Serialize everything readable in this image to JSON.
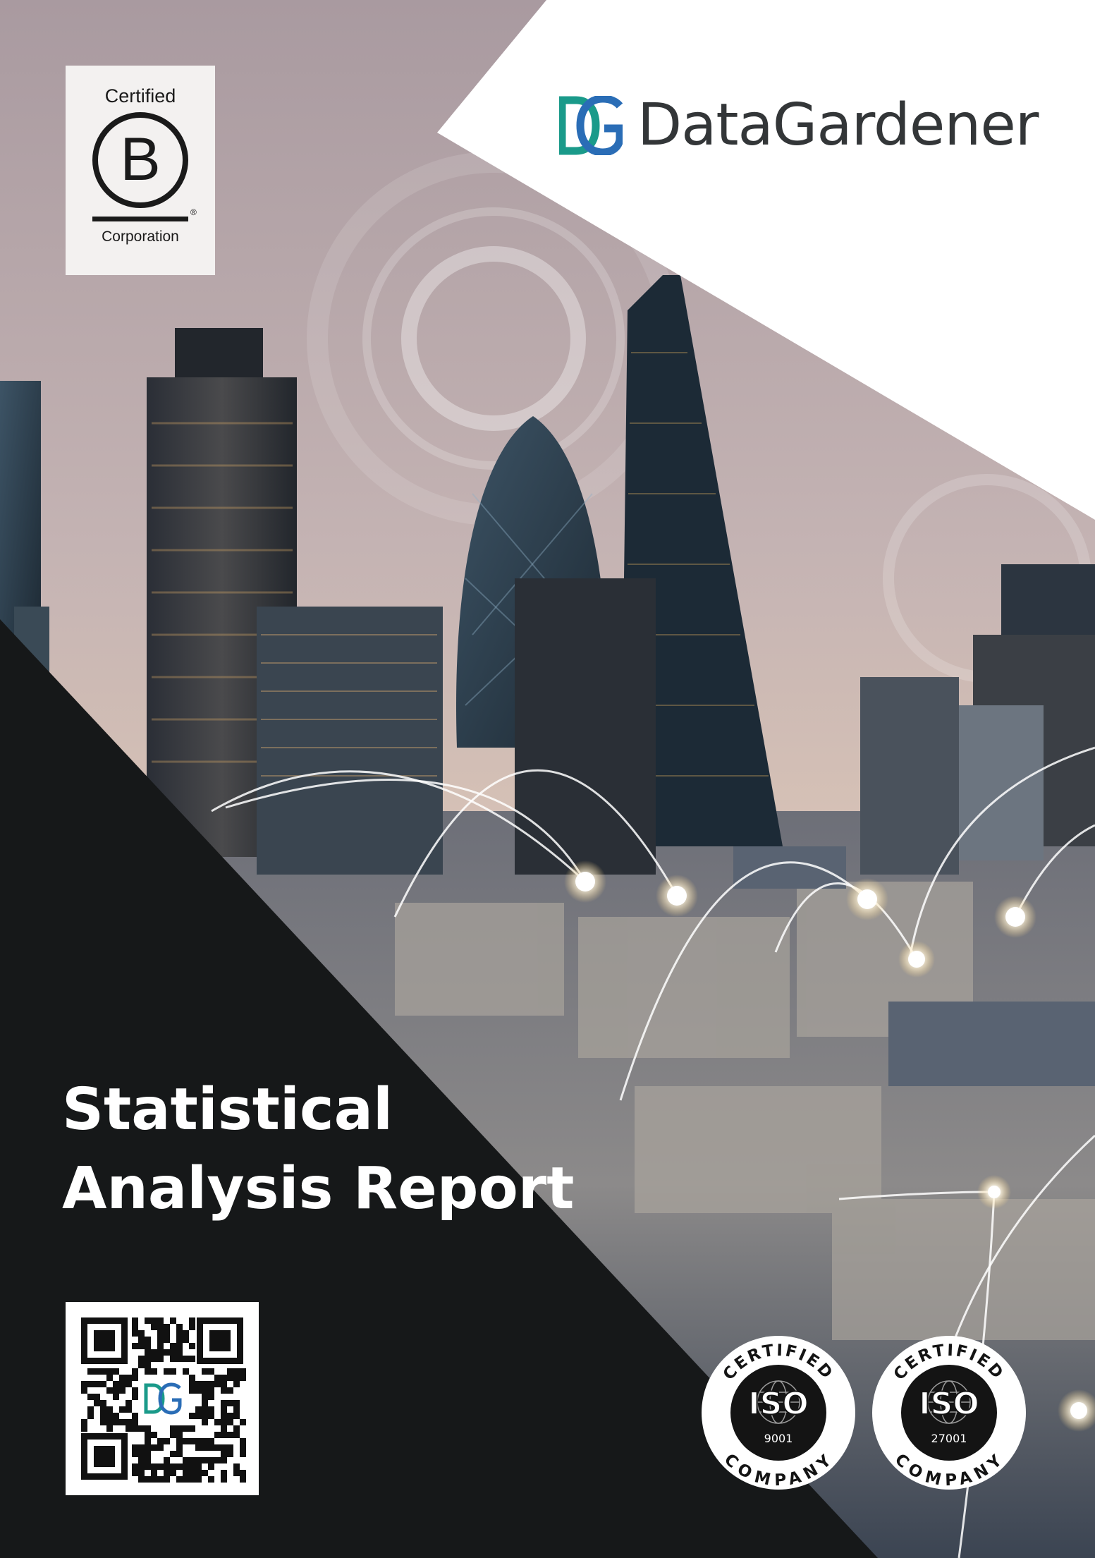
{
  "brand": {
    "mark": "DG",
    "name": "DataGardener",
    "colors": {
      "mark_teal": "#1a9a8a",
      "mark_blue": "#2a6db6",
      "name_text": "#333638"
    }
  },
  "certification_badge": {
    "top_text": "Certified",
    "letter": "B",
    "bottom_text": "Corporation"
  },
  "cover": {
    "title_line1": "Statistical",
    "title_line2": "Analysis Report",
    "background": "London skyline with network connection arcs",
    "colors": {
      "dark_panel": "#161819",
      "white_panel": "#ffffff"
    }
  },
  "qr_code": {
    "center_mark": "DG"
  },
  "iso_badges": [
    {
      "top_text": "CERTIFIED",
      "mark": "ISO",
      "number": "9001",
      "bottom_text": "COMPANY"
    },
    {
      "top_text": "CERTIFIED",
      "mark": "ISO",
      "number": "27001",
      "bottom_text": "COMPANY"
    }
  ]
}
